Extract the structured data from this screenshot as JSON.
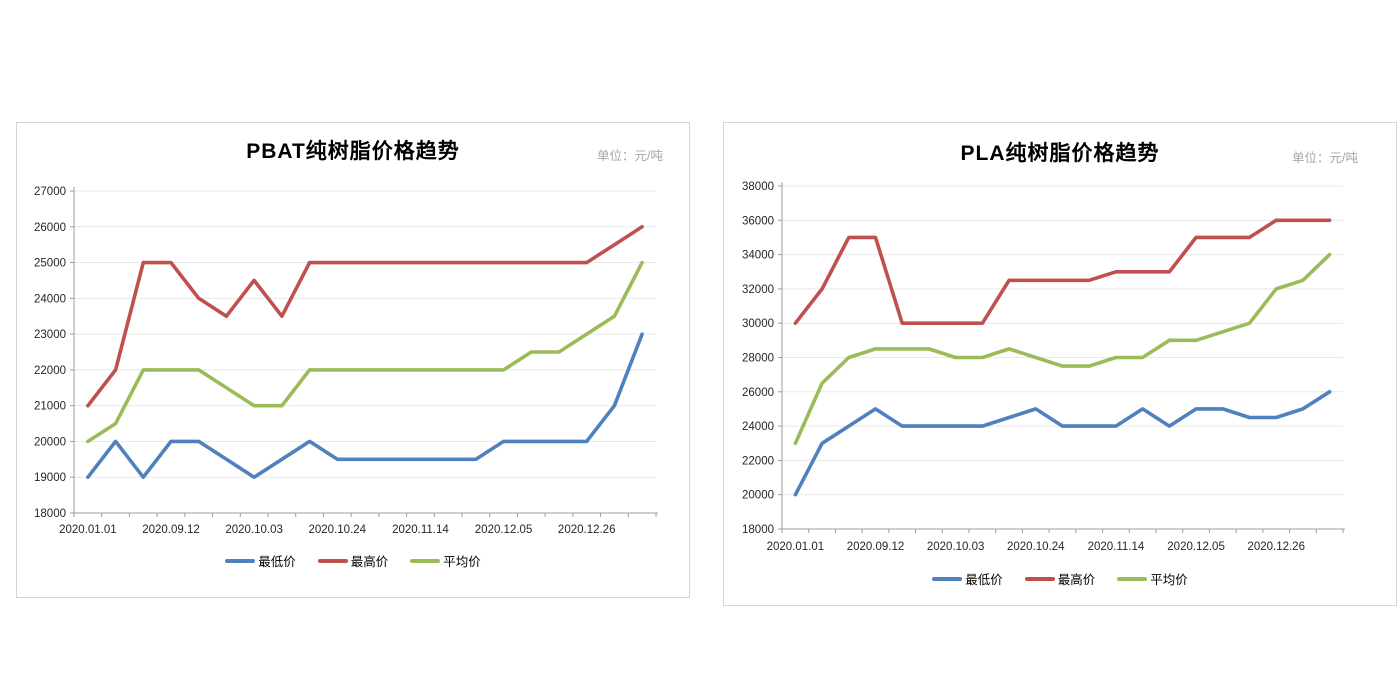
{
  "page": {
    "background": "#ffffff"
  },
  "colors": {
    "lowest": "#4F81BD",
    "highest": "#C0504D",
    "average": "#9BBB59",
    "gridline": "#e9e9e9",
    "axis": "#9c9c9c",
    "axis_text": "#262626",
    "unit_text": "#aaa6a0"
  },
  "chart_data": [
    {
      "type": "line",
      "title": "PBAT纯树脂价格趋势",
      "unit_label": "单位：元/吨",
      "n_points": 21,
      "x_tick_labels": [
        "2020.01.01",
        "2020.09.12",
        "2020.10.03",
        "2020.10.24",
        "2020.11.14",
        "2020.12.05",
        "2020.12.26"
      ],
      "x_label_positions": [
        0,
        3,
        6,
        9,
        12,
        15,
        18
      ],
      "ylim": [
        18000,
        27000
      ],
      "y_step": 1000,
      "grid": true,
      "legend_position": "bottom",
      "series": [
        {
          "name": "最低价",
          "color": "#4F81BD",
          "values": [
            19000,
            20000,
            19000,
            20000,
            20000,
            19500,
            19000,
            19500,
            20000,
            19500,
            19500,
            19500,
            19500,
            19500,
            19500,
            20000,
            20000,
            20000,
            20000,
            21000,
            23000
          ]
        },
        {
          "name": "最高价",
          "color": "#C0504D",
          "values": [
            21000,
            22000,
            25000,
            25000,
            24000,
            23500,
            24500,
            23500,
            25000,
            25000,
            25000,
            25000,
            25000,
            25000,
            25000,
            25000,
            25000,
            25000,
            25000,
            25500,
            26000
          ]
        },
        {
          "name": "平均价",
          "color": "#9BBB59",
          "values": [
            20000,
            20500,
            22000,
            22000,
            22000,
            21500,
            21000,
            21000,
            22000,
            22000,
            22000,
            22000,
            22000,
            22000,
            22000,
            22000,
            22500,
            22500,
            23000,
            23500,
            25000
          ]
        }
      ]
    },
    {
      "type": "line",
      "title": "PLA纯树脂价格趋势",
      "unit_label": "单位：元/吨",
      "n_points": 21,
      "x_tick_labels": [
        "2020.01.01",
        "2020.09.12",
        "2020.10.03",
        "2020.10.24",
        "2020.11.14",
        "2020.12.05",
        "2020.12.26"
      ],
      "x_label_positions": [
        0,
        3,
        6,
        9,
        12,
        15,
        18
      ],
      "ylim": [
        18000,
        38000
      ],
      "y_step": 2000,
      "grid": true,
      "legend_position": "bottom",
      "series": [
        {
          "name": "最低价",
          "color": "#4F81BD",
          "values": [
            20000,
            23000,
            24000,
            25000,
            24000,
            24000,
            24000,
            24000,
            24500,
            25000,
            24000,
            24000,
            24000,
            25000,
            24000,
            25000,
            25000,
            24500,
            24500,
            25000,
            26000
          ]
        },
        {
          "name": "最高价",
          "color": "#C0504D",
          "values": [
            30000,
            32000,
            35000,
            35000,
            30000,
            30000,
            30000,
            30000,
            32500,
            32500,
            32500,
            32500,
            33000,
            33000,
            33000,
            35000,
            35000,
            35000,
            36000,
            36000,
            36000
          ]
        },
        {
          "name": "平均价",
          "color": "#9BBB59",
          "values": [
            23000,
            26500,
            28000,
            28500,
            28500,
            28500,
            28000,
            28000,
            28500,
            28000,
            27500,
            27500,
            28000,
            28000,
            29000,
            29000,
            29500,
            30000,
            32000,
            32500,
            34000
          ]
        }
      ]
    }
  ]
}
